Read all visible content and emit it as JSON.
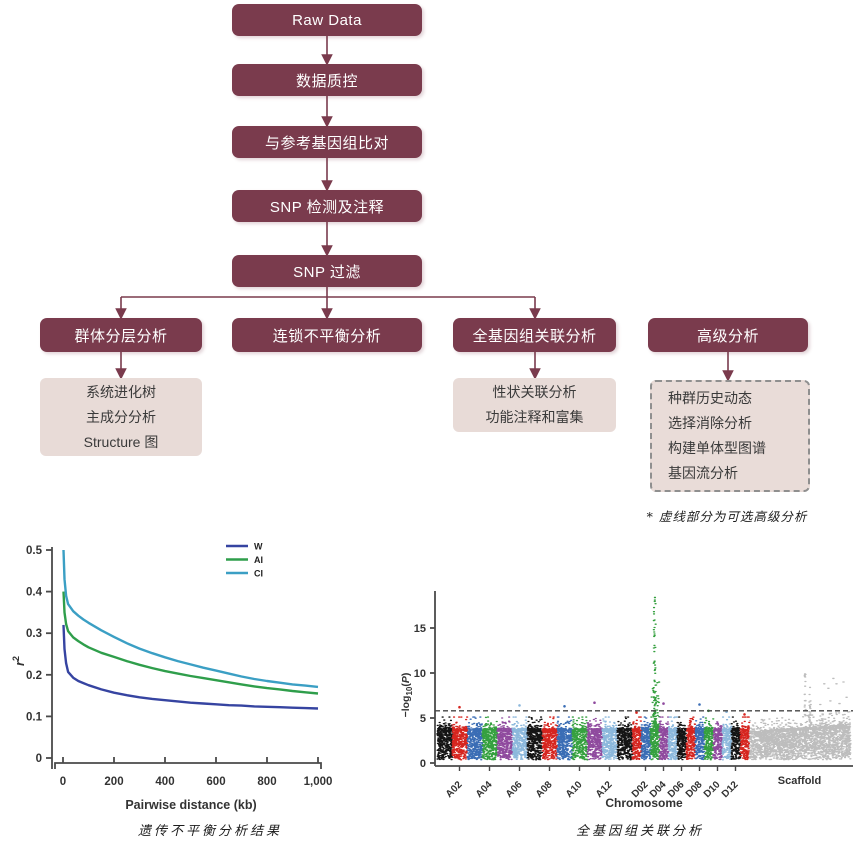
{
  "colors": {
    "flow_box": "#7a3b4d",
    "flow_arrow": "#7a3b4d",
    "result_box": "#e8dbd7",
    "dashed_border": "#8f8f8f",
    "axis": "#4a4a4a",
    "threshold_line": "#444444"
  },
  "flowchart": {
    "main": [
      "Raw Data",
      "数据质控",
      "与参考基因组比对",
      "SNP 检测及注释",
      "SNP 过滤"
    ],
    "branches": [
      "群体分层分析",
      "连锁不平衡分析",
      "全基因组关联分析",
      "高级分析"
    ],
    "results": [
      {
        "lines": [
          "系统进化树",
          "主成分分析",
          "Structure 图"
        ]
      },
      {
        "lines": [
          "性状关联分析",
          "功能注释和富集"
        ]
      },
      {
        "lines": [
          "种群历史动态",
          "选择消除分析",
          "构建单体型图谱",
          "基因流分析"
        ],
        "dashed": true
      }
    ],
    "note": "* 虚线部分为可选高级分析"
  },
  "chart_data": [
    {
      "type": "line",
      "title": "",
      "xlabel": "Pairwise distance (kb)",
      "ylabel": "r2",
      "xlim": [
        0,
        1000
      ],
      "ylim": [
        0,
        0.5
      ],
      "xticks": [
        0,
        200,
        400,
        600,
        800,
        1000
      ],
      "xtick_labels": [
        "0",
        "200",
        "400",
        "600",
        "800",
        "1,000"
      ],
      "yticks": [
        0,
        0.1,
        0.2,
        0.3,
        0.4,
        0.5
      ],
      "ytick_labels": [
        "0",
        "0.1",
        "0.2",
        "0.3",
        "0.4",
        "0.5"
      ],
      "grid": false,
      "legend_position": "top-right",
      "caption": "遗传不平衡分析结果",
      "series": [
        {
          "name": "W",
          "color": "#3644a1",
          "points": [
            [
              2,
              0.32
            ],
            [
              6,
              0.262
            ],
            [
              12,
              0.228
            ],
            [
              20,
              0.207
            ],
            [
              40,
              0.193
            ],
            [
              60,
              0.185
            ],
            [
              80,
              0.18
            ],
            [
              100,
              0.175
            ],
            [
              150,
              0.165
            ],
            [
              200,
              0.157
            ],
            [
              250,
              0.151
            ],
            [
              300,
              0.146
            ],
            [
              350,
              0.142
            ],
            [
              400,
              0.139
            ],
            [
              450,
              0.136
            ],
            [
              500,
              0.133
            ],
            [
              550,
              0.131
            ],
            [
              600,
              0.129
            ],
            [
              650,
              0.127
            ],
            [
              700,
              0.126
            ],
            [
              750,
              0.124
            ],
            [
              800,
              0.123
            ],
            [
              850,
              0.122
            ],
            [
              900,
              0.121
            ],
            [
              950,
              0.12
            ],
            [
              1000,
              0.119
            ]
          ]
        },
        {
          "name": "AI",
          "color": "#2f9e4b",
          "points": [
            [
              2,
              0.4
            ],
            [
              6,
              0.35
            ],
            [
              12,
              0.322
            ],
            [
              20,
              0.305
            ],
            [
              40,
              0.29
            ],
            [
              60,
              0.281
            ],
            [
              80,
              0.273
            ],
            [
              100,
              0.266
            ],
            [
              150,
              0.253
            ],
            [
              200,
              0.243
            ],
            [
              250,
              0.233
            ],
            [
              300,
              0.224
            ],
            [
              350,
              0.216
            ],
            [
              400,
              0.209
            ],
            [
              450,
              0.203
            ],
            [
              500,
              0.197
            ],
            [
              550,
              0.192
            ],
            [
              600,
              0.187
            ],
            [
              650,
              0.182
            ],
            [
              700,
              0.177
            ],
            [
              750,
              0.172
            ],
            [
              800,
              0.168
            ],
            [
              850,
              0.165
            ],
            [
              900,
              0.161
            ],
            [
              950,
              0.158
            ],
            [
              1000,
              0.155
            ]
          ]
        },
        {
          "name": "CI",
          "color": "#3b9fc4",
          "points": [
            [
              2,
              0.5
            ],
            [
              6,
              0.43
            ],
            [
              12,
              0.39
            ],
            [
              20,
              0.37
            ],
            [
              40,
              0.353
            ],
            [
              60,
              0.342
            ],
            [
              80,
              0.333
            ],
            [
              100,
              0.325
            ],
            [
              150,
              0.307
            ],
            [
              200,
              0.291
            ],
            [
              250,
              0.276
            ],
            [
              300,
              0.263
            ],
            [
              350,
              0.252
            ],
            [
              400,
              0.242
            ],
            [
              450,
              0.233
            ],
            [
              500,
              0.225
            ],
            [
              550,
              0.217
            ],
            [
              600,
              0.21
            ],
            [
              650,
              0.203
            ],
            [
              700,
              0.196
            ],
            [
              750,
              0.19
            ],
            [
              800,
              0.185
            ],
            [
              850,
              0.181
            ],
            [
              900,
              0.177
            ],
            [
              950,
              0.174
            ],
            [
              1000,
              0.171
            ]
          ]
        }
      ]
    },
    {
      "type": "scatter",
      "subtype": "manhattan",
      "xlabel": "Chromosome",
      "ylabel": "-log10(P)",
      "yticks": [
        0,
        5,
        10,
        15
      ],
      "ylim": [
        0,
        19
      ],
      "threshold": 5.8,
      "threshold_style": "dashed",
      "caption": "全基因组关联分析",
      "palette": [
        "#141414",
        "#d6251f",
        "#3a6db5",
        "#35a03f",
        "#8f4a9e",
        "#8cb8dc"
      ],
      "chromosomes": [
        "A01",
        "A02",
        "A03",
        "A04",
        "A05",
        "A06",
        "A07",
        "A08",
        "A09",
        "A10",
        "A11",
        "A12",
        "A13",
        "D01",
        "D02",
        "D03",
        "D04",
        "D05",
        "D06",
        "D07",
        "D08",
        "D09",
        "D10",
        "D11",
        "D12",
        "D13"
      ],
      "labeled_chromosomes": [
        "A02",
        "A04",
        "A06",
        "A08",
        "A10",
        "A12",
        "D02",
        "D04",
        "D06",
        "D08",
        "D10",
        "D12"
      ],
      "chrom_width_A": 15,
      "chrom_width_D": 9,
      "scaffold": {
        "label": "Scaffold",
        "color": "#bdbdbd",
        "width": 101
      },
      "peak": {
        "chrom": "D03",
        "max": 18.4
      },
      "outliers": [
        [
          "A02",
          6.2
        ],
        [
          "A06",
          6.4
        ],
        [
          "A09",
          6.3
        ],
        [
          "A11",
          6.7
        ],
        [
          "D01",
          5.6
        ],
        [
          "D04",
          6.6
        ],
        [
          "D08",
          6.5
        ],
        [
          "D09",
          5.8
        ],
        [
          "D11",
          5.7
        ],
        [
          "D13",
          5.4
        ]
      ],
      "scaffold_columns": [
        [
          0.55,
          9.9
        ],
        [
          0.6,
          8.4
        ]
      ],
      "scaffold_outliers": [
        [
          0.7,
          6.5
        ],
        [
          0.74,
          8.8
        ],
        [
          0.78,
          8.3
        ],
        [
          0.8,
          6.9
        ],
        [
          0.83,
          9.4
        ],
        [
          0.86,
          8.8
        ],
        [
          0.89,
          6.6
        ],
        [
          0.93,
          9.0
        ],
        [
          0.96,
          7.3
        ]
      ]
    }
  ]
}
